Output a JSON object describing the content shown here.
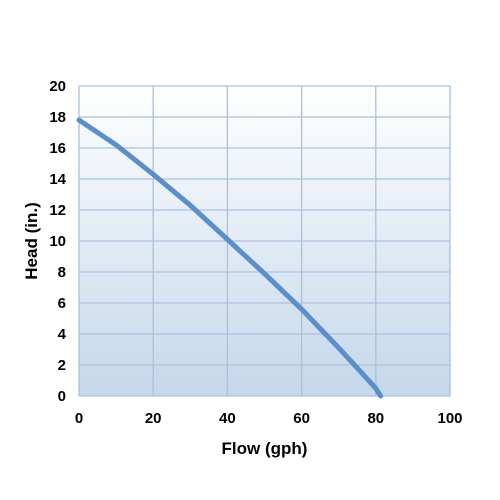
{
  "chart_data": {
    "type": "line",
    "title": "",
    "xlabel": "Flow (gph)",
    "ylabel": "Head (in.)",
    "xlim": [
      0,
      100
    ],
    "ylim": [
      0,
      20
    ],
    "x_ticks": [
      0,
      20,
      40,
      60,
      80,
      100
    ],
    "y_ticks": [
      0,
      2,
      4,
      6,
      8,
      10,
      12,
      14,
      16,
      18,
      20
    ],
    "grid": true,
    "legend": "none",
    "background_gradient": [
      "#ffffff",
      "#c5d7ea"
    ],
    "grid_color": "#a9c1de",
    "series": [
      {
        "color": "#5b8fcb",
        "x": [
          0,
          10,
          20,
          30,
          40,
          50,
          60,
          70,
          75,
          80,
          81.3
        ],
        "y": [
          17.8,
          16.2,
          14.3,
          12.3,
          10.1,
          7.9,
          5.6,
          3.1,
          1.8,
          0.5,
          0
        ]
      }
    ]
  }
}
